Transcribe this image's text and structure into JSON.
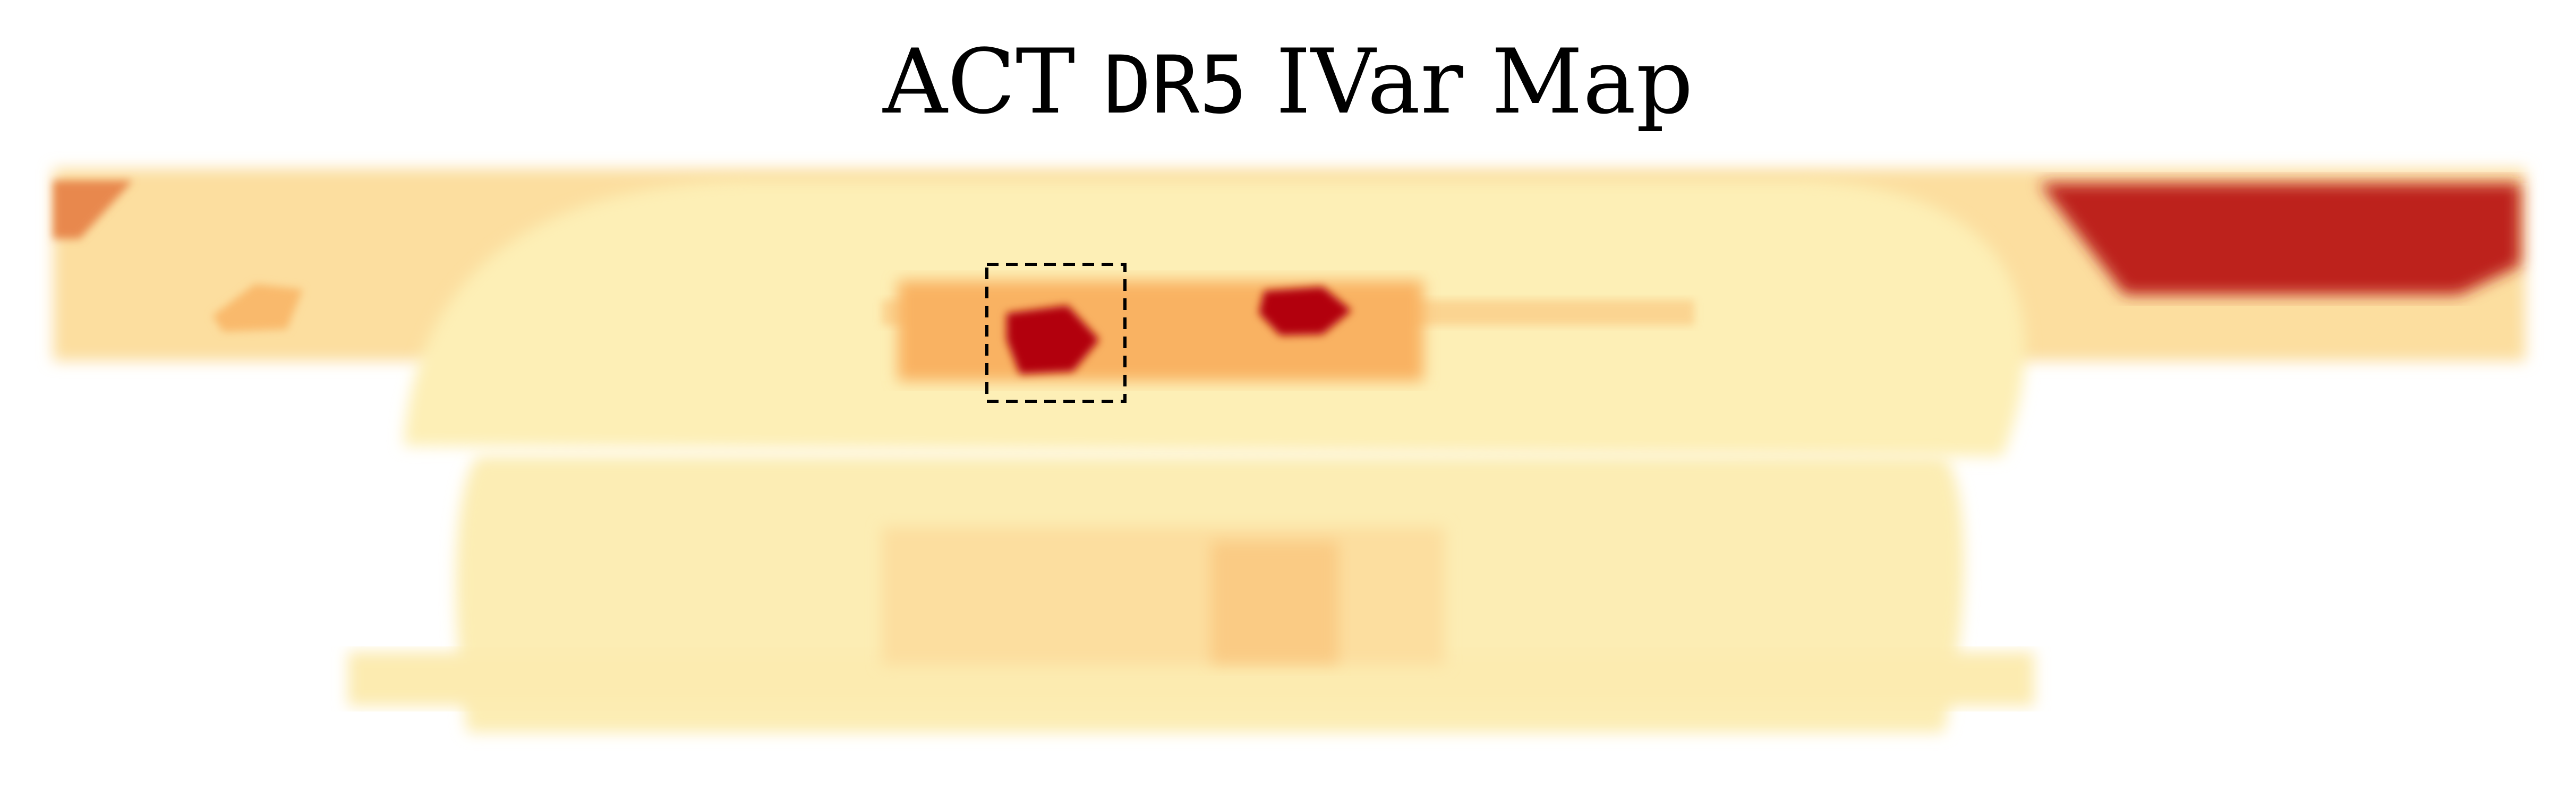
{
  "chart_data": {
    "type": "heatmap",
    "title_parts": [
      "ACT ",
      "DR5",
      " IVar Map"
    ],
    "colormap": "YlOrRd (light yellow = low, dark red = high)",
    "colors": {
      "low": "#fdf7c1",
      "mid": "#f9b262",
      "high": "#b2050d",
      "highlight_box": "#000000"
    },
    "regions": [
      {
        "name": "wide-band",
        "level": 0.18
      },
      {
        "name": "upper-dome",
        "level": 0.06
      },
      {
        "name": "lower-dome",
        "level": 0.07
      },
      {
        "name": "bottom-strip",
        "level": 0.09
      },
      {
        "name": "inner-rectangle",
        "level": 0.18
      },
      {
        "name": "inner-rectangle-bright",
        "level": 0.32
      },
      {
        "name": "central-strip",
        "level": 0.5
      },
      {
        "name": "hotspot-left",
        "level": 1.0
      },
      {
        "name": "hotspot-right",
        "level": 1.0
      },
      {
        "name": "left-edge-patch",
        "level": 0.62
      },
      {
        "name": "left-small-patch",
        "level": 0.45
      },
      {
        "name": "right-deep-field",
        "level": 0.92
      }
    ],
    "highlight_box": "dashed rectangle around left deep field",
    "axes": "off",
    "grid": false,
    "legend": "none"
  }
}
